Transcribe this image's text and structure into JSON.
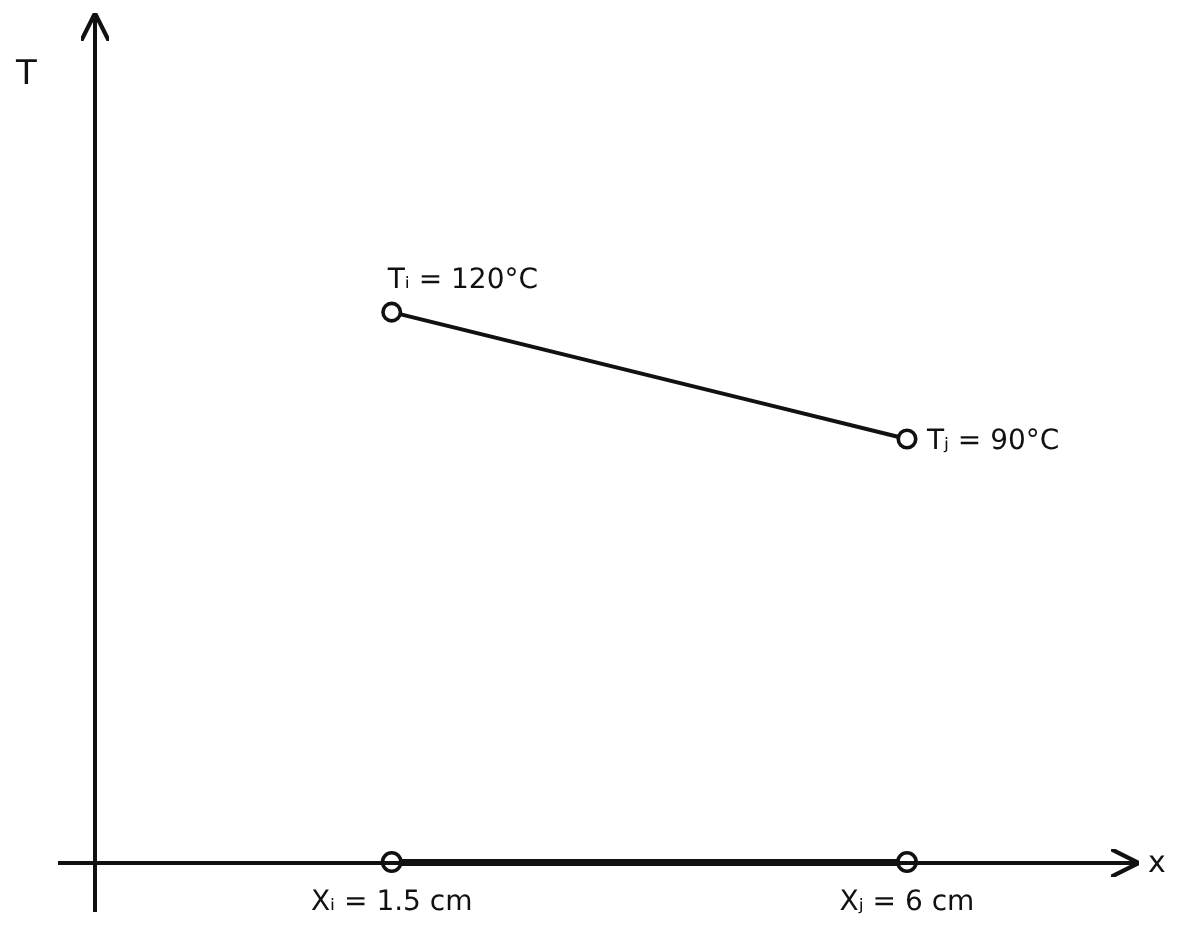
{
  "chart_data": {
    "type": "line",
    "xlabel": "x",
    "ylabel": "T",
    "xlim": [
      -1.1,
      8
    ],
    "ylim": [
      -10,
      190
    ],
    "tick_labels": "x",
    "marker": "circle",
    "line_style": "solid",
    "xticks": [
      {
        "value": 1.5,
        "label": "Xᵢ = 1.5 cm"
      },
      {
        "value": 6,
        "label": "Xⱼ = 6 cm"
      }
    ],
    "series": [
      {
        "color": "#111111",
        "x": [
          1.5,
          6
        ],
        "values": [
          120,
          90
        ],
        "value_labels": [
          "Tᵢ = 120°C",
          "Tⱼ = 90°C"
        ]
      }
    ]
  }
}
